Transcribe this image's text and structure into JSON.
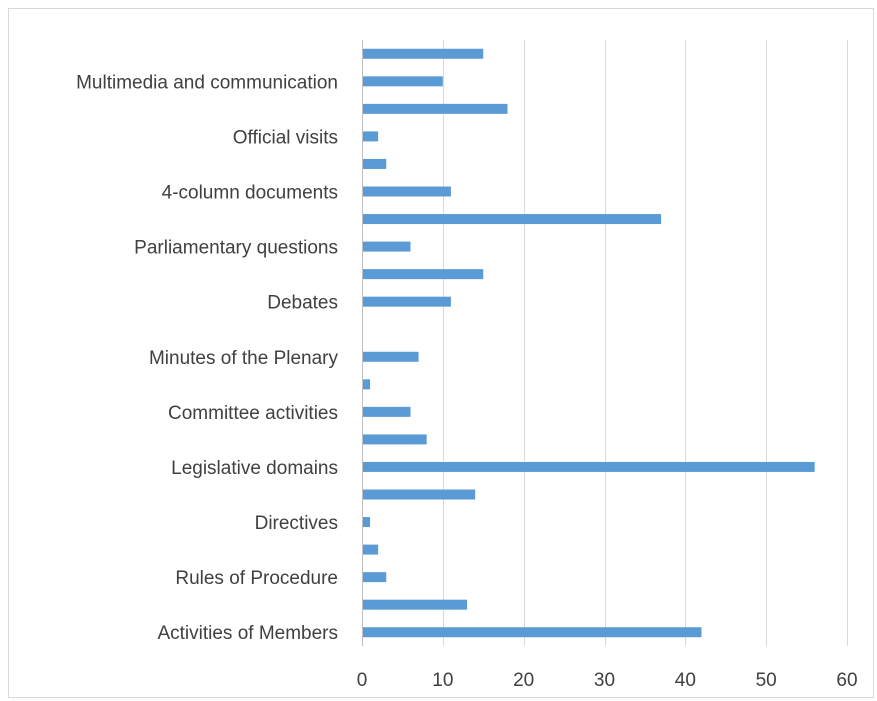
{
  "chart_data": {
    "type": "bar",
    "orientation": "horizontal",
    "title": "",
    "xlabel": "",
    "ylabel": "",
    "xlim": [
      0,
      60
    ],
    "x_ticks": [
      0,
      10,
      20,
      30,
      40,
      50,
      60
    ],
    "grid": true,
    "legend": "none",
    "bar_color": "#5b9bd5",
    "categories": [
      "Activities of Members",
      "",
      "Rules of Procedure",
      "",
      "Directives",
      "",
      "Legislative domains",
      "",
      "Committee activities",
      "",
      "Minutes of the Plenary",
      "",
      "Debates",
      "",
      "Parliamentary questions",
      "",
      "4-column documents",
      "",
      "Official visits",
      "",
      "Multimedia and communication",
      ""
    ],
    "values": [
      42,
      13,
      3,
      2,
      1,
      14,
      56,
      8,
      6,
      1,
      7,
      0,
      11,
      15,
      6,
      37,
      11,
      3,
      2,
      18,
      10,
      15
    ]
  }
}
